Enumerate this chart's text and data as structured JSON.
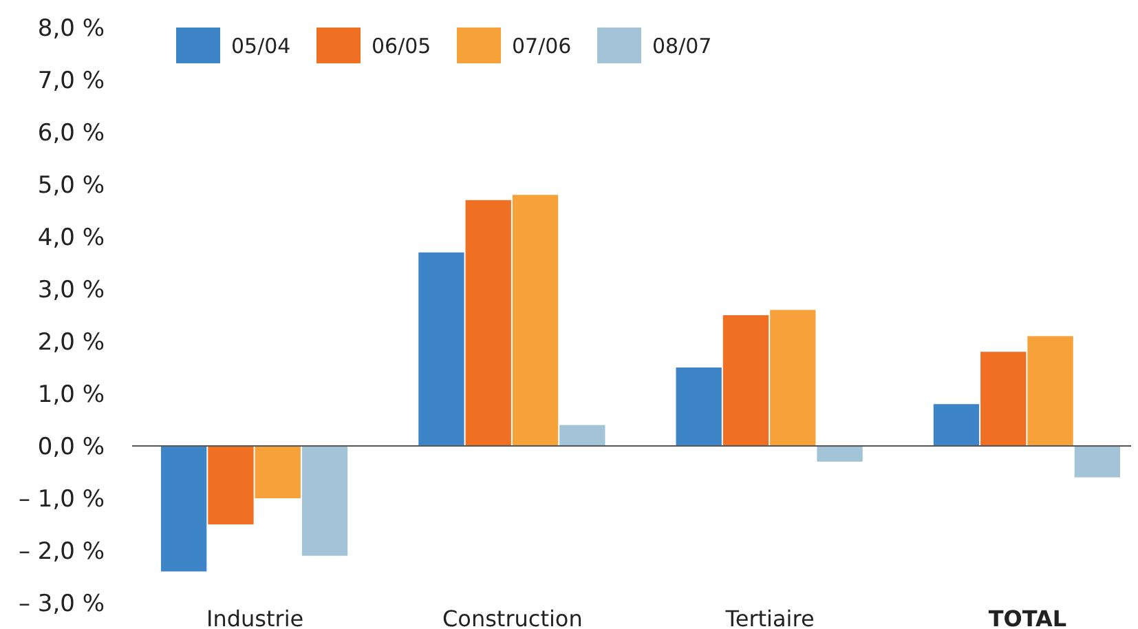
{
  "chart_data": {
    "type": "bar",
    "categories": [
      "Industrie",
      "Construction",
      "Tertiaire",
      "TOTAL"
    ],
    "series": [
      {
        "name": "05/04",
        "color": "#3d85c6",
        "values": [
          -2.4,
          3.7,
          1.5,
          0.8
        ]
      },
      {
        "name": "06/05",
        "color": "#f07023",
        "values": [
          -1.5,
          4.7,
          2.5,
          1.8
        ]
      },
      {
        "name": "07/06",
        "color": "#f7a13a",
        "values": [
          -1.0,
          4.8,
          2.6,
          2.1
        ]
      },
      {
        "name": "08/07",
        "color": "#a3c4d6",
        "values": [
          -2.1,
          0.4,
          -0.3,
          -0.6
        ]
      }
    ],
    "ylim": [
      -3,
      8
    ],
    "yticks": [
      {
        "value": 8,
        "label": "8,0 %"
      },
      {
        "value": 7,
        "label": "7,0 %"
      },
      {
        "value": 6,
        "label": "6,0 %"
      },
      {
        "value": 5,
        "label": "5,0 %"
      },
      {
        "value": 4,
        "label": "4,0 %"
      },
      {
        "value": 3,
        "label": "3,0 %"
      },
      {
        "value": 2,
        "label": "2,0 %"
      },
      {
        "value": 1,
        "label": "1,0 %"
      },
      {
        "value": 0,
        "label": "0,0 %"
      },
      {
        "value": -1,
        "label": "– 1,0 %"
      },
      {
        "value": -2,
        "label": "– 2,0 %"
      },
      {
        "value": -3,
        "label": "– 3,0 %"
      }
    ],
    "legend": "top left"
  }
}
